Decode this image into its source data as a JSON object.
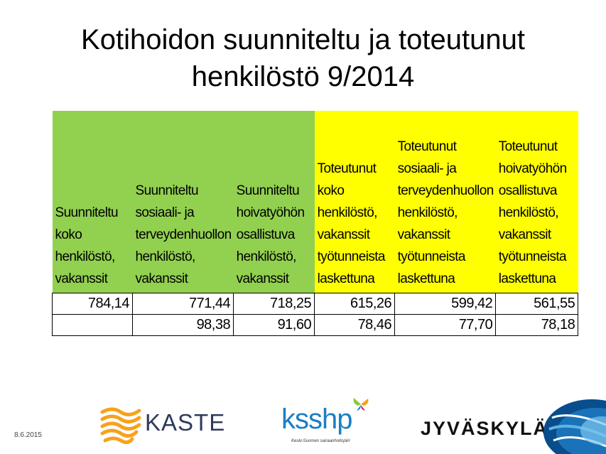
{
  "title": {
    "line1": "Kotihoidon suunniteltu ja toteutunut",
    "line2": "henkilöstö 9/2014"
  },
  "table": {
    "headers": [
      "Suunniteltu koko henkilöstö, vakanssit",
      "Suunniteltu sosiaali- ja terveydenhuollon henkilöstö, vakanssit",
      "Suunniteltu hoivatyöhön osallistuva henkilöstö, vakanssit",
      "Toteutunut koko henkilöstö, vakanssit työtunneista laskettuna",
      "Toteutunut sosiaali- ja terveydenhuollon henkilöstö, vakanssit työtunneista laskettuna",
      "Toteutunut hoivatyöhön osallistuva henkilöstö, vakanssit työtunneista laskettuna"
    ],
    "header_colors": [
      "#92d050",
      "#92d050",
      "#92d050",
      "#ffff00",
      "#ffff00",
      "#ffff00"
    ],
    "rows": [
      [
        "784,14",
        "771,44",
        "718,25",
        "615,26",
        "599,42",
        "561,55"
      ],
      [
        "",
        "98,38",
        "91,60",
        "78,46",
        "77,70",
        "78,18"
      ]
    ]
  },
  "footer": {
    "date": "8.6.2015",
    "logos": {
      "kaste": "KASTE",
      "ksshp": "ksshp",
      "ksshp_sub": "Keski-Suomen sairaanhoitopiiri",
      "jyvaskyla": "JYVÄSKYLÄ"
    }
  }
}
